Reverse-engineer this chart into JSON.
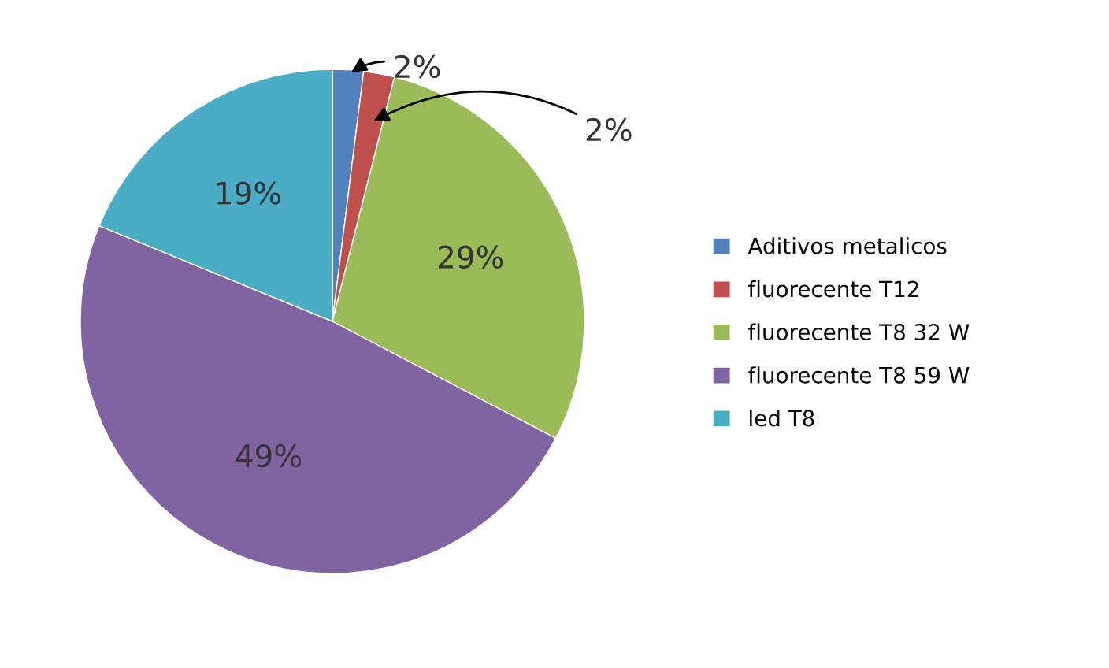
{
  "chart_data": {
    "type": "pie",
    "categories": [
      "Aditivos metalicos",
      "fluorecente T12",
      "fluorecente T8 32 W",
      "fluorecente T8 59 W",
      "led T8"
    ],
    "values": [
      2,
      2,
      29,
      49,
      19
    ],
    "colors": [
      "#4f81bd",
      "#c0504d",
      "#9bbb59",
      "#8064a2",
      "#4bacc6"
    ],
    "value_labels": [
      "2%",
      "2%",
      "29%",
      "49%",
      "19%"
    ],
    "legend": "right"
  }
}
